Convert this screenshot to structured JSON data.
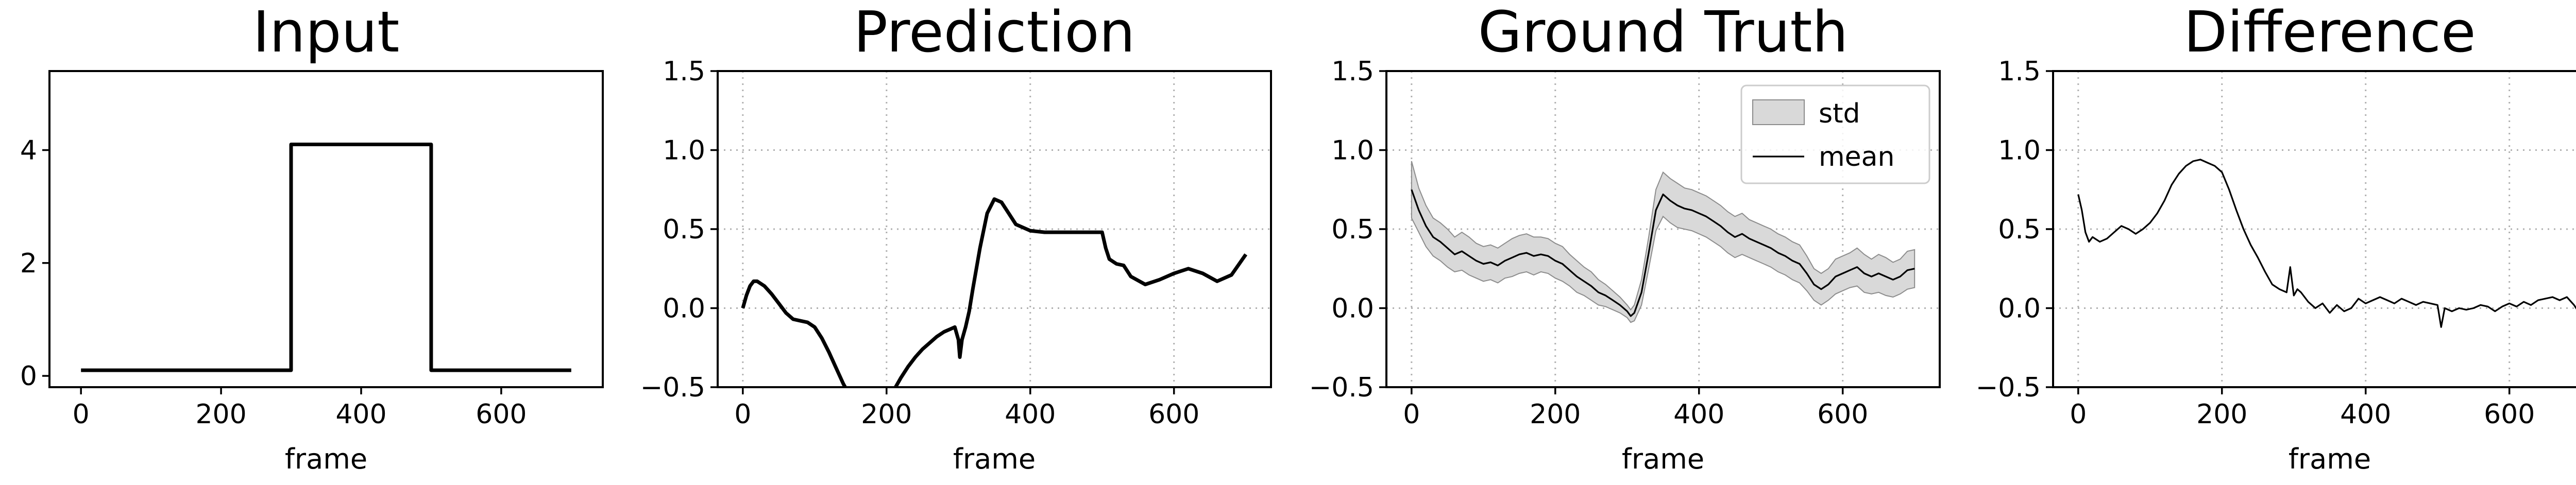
{
  "chart_data": [
    {
      "type": "line",
      "title": "Input",
      "xlabel": "frame",
      "ylabel": "",
      "xlim": [
        -45,
        745
      ],
      "ylim": [
        -0.2,
        5.4
      ],
      "xticks": [
        0,
        200,
        400,
        600
      ],
      "xtick_labels": [
        "0",
        "200",
        "400",
        "600"
      ],
      "yticks": [
        0,
        2,
        4
      ],
      "ytick_labels": [
        "0",
        "2",
        "4"
      ],
      "grid": false,
      "legend": null,
      "series": [
        {
          "color": "#000000",
          "style": "thick",
          "x": [
            0,
            300,
            300,
            500,
            500,
            700
          ],
          "y": [
            0.1,
            0.1,
            4.1,
            4.1,
            0.1,
            0.1
          ]
        }
      ]
    },
    {
      "type": "line",
      "title": "Prediction",
      "xlabel": "frame",
      "ylabel": "",
      "xlim": [
        -35,
        735
      ],
      "ylim": [
        -0.5,
        1.5
      ],
      "xticks": [
        0,
        200,
        400,
        600
      ],
      "xtick_labels": [
        "0",
        "200",
        "400",
        "600"
      ],
      "yticks": [
        -0.5,
        0.0,
        0.5,
        1.0,
        1.5
      ],
      "ytick_labels": [
        "−0.5",
        "0.0",
        "0.5",
        "1.0",
        "1.5"
      ],
      "grid": true,
      "legend": null,
      "series": [
        {
          "color": "#000000",
          "style": "thick",
          "x": [
            0,
            5,
            10,
            15,
            20,
            30,
            40,
            50,
            60,
            70,
            80,
            90,
            100,
            110,
            120,
            130,
            140,
            150,
            160,
            200,
            210,
            220,
            230,
            240,
            250,
            260,
            270,
            280,
            290,
            295,
            300,
            302,
            305,
            310,
            315,
            320,
            330,
            340,
            350,
            360,
            370,
            380,
            400,
            420,
            450,
            480,
            500,
            505,
            510,
            520,
            530,
            540,
            560,
            580,
            600,
            620,
            640,
            660,
            680,
            700
          ],
          "y": [
            0.0,
            0.08,
            0.14,
            0.17,
            0.17,
            0.14,
            0.09,
            0.03,
            -0.03,
            -0.07,
            -0.08,
            -0.09,
            -0.12,
            -0.19,
            -0.28,
            -0.38,
            -0.48,
            -0.56,
            -0.62,
            -0.6,
            -0.52,
            -0.44,
            -0.37,
            -0.31,
            -0.26,
            -0.22,
            -0.18,
            -0.15,
            -0.13,
            -0.12,
            -0.2,
            -0.31,
            -0.2,
            -0.12,
            -0.02,
            0.12,
            0.38,
            0.6,
            0.69,
            0.67,
            0.6,
            0.53,
            0.49,
            0.48,
            0.48,
            0.48,
            0.48,
            0.38,
            0.31,
            0.28,
            0.27,
            0.2,
            0.15,
            0.18,
            0.22,
            0.25,
            0.22,
            0.17,
            0.21,
            0.34
          ]
        }
      ]
    },
    {
      "type": "area",
      "title": "Ground Truth",
      "xlabel": "frame",
      "ylabel": "",
      "xlim": [
        -35,
        735
      ],
      "ylim": [
        -0.5,
        1.5
      ],
      "xticks": [
        0,
        200,
        400,
        600
      ],
      "xtick_labels": [
        "0",
        "200",
        "400",
        "600"
      ],
      "yticks": [
        -0.5,
        0.0,
        0.5,
        1.0,
        1.5
      ],
      "ytick_labels": [
        "−0.5",
        "0.0",
        "0.5",
        "1.0",
        "1.5"
      ],
      "grid": true,
      "legend": {
        "position": "top-right",
        "entries": [
          "std",
          "mean"
        ]
      },
      "x": [
        0,
        10,
        20,
        30,
        40,
        50,
        60,
        70,
        80,
        90,
        100,
        110,
        120,
        130,
        140,
        150,
        160,
        170,
        180,
        190,
        200,
        210,
        220,
        230,
        240,
        250,
        260,
        270,
        280,
        290,
        300,
        305,
        310,
        320,
        330,
        340,
        350,
        360,
        370,
        380,
        390,
        400,
        410,
        420,
        430,
        440,
        450,
        460,
        470,
        480,
        490,
        500,
        510,
        520,
        530,
        540,
        550,
        560,
        570,
        580,
        590,
        600,
        610,
        620,
        630,
        640,
        650,
        660,
        670,
        680,
        690,
        700
      ],
      "series": [
        {
          "name": "mean",
          "color": "#000000",
          "style": "thin",
          "values": [
            0.75,
            0.62,
            0.52,
            0.45,
            0.42,
            0.38,
            0.34,
            0.36,
            0.33,
            0.3,
            0.28,
            0.29,
            0.27,
            0.3,
            0.32,
            0.34,
            0.35,
            0.33,
            0.34,
            0.33,
            0.3,
            0.28,
            0.24,
            0.2,
            0.17,
            0.14,
            0.1,
            0.08,
            0.05,
            0.02,
            -0.02,
            -0.05,
            -0.03,
            0.1,
            0.35,
            0.62,
            0.72,
            0.68,
            0.65,
            0.63,
            0.62,
            0.6,
            0.58,
            0.55,
            0.52,
            0.48,
            0.45,
            0.47,
            0.44,
            0.42,
            0.4,
            0.38,
            0.35,
            0.33,
            0.3,
            0.28,
            0.22,
            0.15,
            0.12,
            0.15,
            0.2,
            0.22,
            0.24,
            0.26,
            0.22,
            0.2,
            0.22,
            0.2,
            0.18,
            0.2,
            0.24,
            0.25
          ]
        },
        {
          "name": "std",
          "color": "#d9d9d9",
          "edge_color": "#8c8c8c",
          "band_halfwidth": [
            0.18,
            0.14,
            0.13,
            0.12,
            0.12,
            0.12,
            0.11,
            0.12,
            0.12,
            0.11,
            0.11,
            0.11,
            0.11,
            0.11,
            0.12,
            0.12,
            0.12,
            0.12,
            0.11,
            0.11,
            0.11,
            0.11,
            0.1,
            0.1,
            0.09,
            0.09,
            0.08,
            0.07,
            0.06,
            0.05,
            0.04,
            0.04,
            0.05,
            0.08,
            0.1,
            0.13,
            0.14,
            0.14,
            0.14,
            0.13,
            0.13,
            0.13,
            0.13,
            0.13,
            0.13,
            0.13,
            0.13,
            0.13,
            0.12,
            0.12,
            0.12,
            0.12,
            0.12,
            0.12,
            0.12,
            0.12,
            0.11,
            0.1,
            0.1,
            0.1,
            0.11,
            0.11,
            0.11,
            0.12,
            0.12,
            0.11,
            0.12,
            0.12,
            0.11,
            0.11,
            0.12,
            0.12
          ]
        }
      ]
    },
    {
      "type": "line",
      "title": "Difference",
      "xlabel": "frame",
      "ylabel": "",
      "xlim": [
        -35,
        735
      ],
      "ylim": [
        -0.5,
        1.5
      ],
      "xticks": [
        0,
        200,
        400,
        600
      ],
      "xtick_labels": [
        "0",
        "200",
        "400",
        "600"
      ],
      "yticks": [
        -0.5,
        0.0,
        0.5,
        1.0,
        1.5
      ],
      "ytick_labels": [
        "−0.5",
        "0.0",
        "0.5",
        "1.0",
        "1.5"
      ],
      "grid": true,
      "legend": null,
      "series": [
        {
          "color": "#000000",
          "style": "thin",
          "x": [
            0,
            5,
            10,
            15,
            20,
            30,
            40,
            50,
            60,
            70,
            80,
            90,
            100,
            110,
            120,
            130,
            140,
            150,
            160,
            170,
            180,
            190,
            200,
            210,
            220,
            230,
            240,
            250,
            260,
            270,
            280,
            290,
            295,
            300,
            305,
            310,
            320,
            330,
            340,
            350,
            360,
            370,
            380,
            390,
            400,
            410,
            420,
            430,
            440,
            450,
            460,
            470,
            480,
            490,
            500,
            505,
            510,
            520,
            530,
            540,
            550,
            560,
            570,
            580,
            590,
            600,
            610,
            620,
            630,
            640,
            650,
            660,
            670,
            680,
            690,
            700
          ],
          "y": [
            0.72,
            0.62,
            0.48,
            0.42,
            0.45,
            0.42,
            0.44,
            0.48,
            0.52,
            0.5,
            0.47,
            0.5,
            0.54,
            0.6,
            0.68,
            0.78,
            0.85,
            0.9,
            0.93,
            0.94,
            0.92,
            0.9,
            0.86,
            0.75,
            0.62,
            0.5,
            0.4,
            0.32,
            0.23,
            0.15,
            0.12,
            0.1,
            0.26,
            0.08,
            0.12,
            0.1,
            0.04,
            0.0,
            0.03,
            -0.03,
            0.02,
            -0.02,
            0.0,
            0.06,
            0.03,
            0.05,
            0.07,
            0.05,
            0.03,
            0.06,
            0.04,
            0.02,
            0.04,
            0.03,
            0.02,
            -0.12,
            0.0,
            -0.02,
            0.0,
            -0.01,
            0.0,
            0.02,
            0.01,
            -0.02,
            0.01,
            0.03,
            0.01,
            0.04,
            0.02,
            0.05,
            0.06,
            0.07,
            0.05,
            0.07,
            0.02,
            -0.05
          ]
        }
      ]
    }
  ]
}
